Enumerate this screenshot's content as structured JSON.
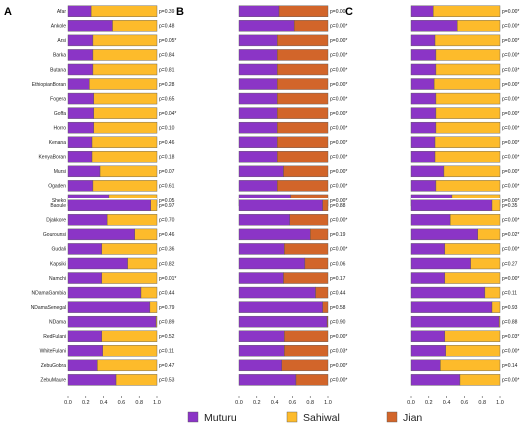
{
  "chart_data": {
    "type": "bar",
    "stacked": true,
    "orientation": "horizontal",
    "xlim": [
      0,
      1
    ],
    "x_ticks": [
      "0.0",
      "0.2",
      "0.4",
      "0.6",
      "0.8",
      "1.0"
    ],
    "legend": {
      "placement": "bottom",
      "items": [
        {
          "name": "Muturu",
          "color": "#8b35c6"
        },
        {
          "name": "Sahiwal",
          "color": "#fdbb2b"
        },
        {
          "name": "Jian",
          "color": "#d2652a"
        }
      ]
    },
    "groups": [
      {
        "rows": [
          "Afar",
          "Ankole",
          "Arsi",
          "Barka",
          "Butana",
          "EthiopianBoran",
          "Fogera",
          "Goffa",
          "Horro",
          "Kenana",
          "KenyaBoran",
          "Mursi",
          "Ogaden",
          "Sheko"
        ]
      },
      {
        "rows": [
          "Baoule",
          "Djakkore",
          "Gourounsi",
          "Gudali",
          "Kapsiki",
          "Namchi",
          "NDamaGambia",
          "NDamaSenegal",
          "NDama",
          "RedFulani",
          "WhiteFulani",
          "ZebuGobra",
          "ZebuMaure"
        ]
      }
    ],
    "panels": [
      {
        "label": "A",
        "groups": [
          [
            {
              "values": [
                0.26,
                0.74,
                0.0
              ],
              "p": "p=0.39"
            },
            {
              "values": [
                0.5,
                0.5,
                0.0
              ],
              "p": "p=0.48"
            },
            {
              "values": [
                0.28,
                0.72,
                0.0
              ],
              "p": "p=0.05*"
            },
            {
              "values": [
                0.28,
                0.72,
                0.0
              ],
              "p": "p=0.84"
            },
            {
              "values": [
                0.28,
                0.72,
                0.0
              ],
              "p": "p=0.81"
            },
            {
              "values": [
                0.24,
                0.76,
                0.0
              ],
              "p": "p=0.28"
            },
            {
              "values": [
                0.29,
                0.71,
                0.0
              ],
              "p": "p=0.65"
            },
            {
              "values": [
                0.29,
                0.71,
                0.0
              ],
              "p": "p=0.04*"
            },
            {
              "values": [
                0.29,
                0.71,
                0.0
              ],
              "p": "p=0.10"
            },
            {
              "values": [
                0.27,
                0.73,
                0.0
              ],
              "p": "p=0.46"
            },
            {
              "values": [
                0.27,
                0.73,
                0.0
              ],
              "p": "p=0.18"
            },
            {
              "values": [
                0.36,
                0.64,
                0.0
              ],
              "p": "p=0.07"
            },
            {
              "values": [
                0.28,
                0.72,
                0.0
              ],
              "p": "p=0.61"
            },
            {
              "values": [
                0.46,
                0.54,
                0.0
              ],
              "p": "p=0.05"
            }
          ],
          [
            {
              "values": [
                0.93,
                0.07,
                0.0
              ],
              "p": "p=0.97"
            },
            {
              "values": [
                0.44,
                0.56,
                0.0
              ],
              "p": "p=0.70"
            },
            {
              "values": [
                0.75,
                0.25,
                0.0
              ],
              "p": "p=0.46"
            },
            {
              "values": [
                0.38,
                0.62,
                0.0
              ],
              "p": "p=0.36"
            },
            {
              "values": [
                0.67,
                0.33,
                0.0
              ],
              "p": "p=0.82"
            },
            {
              "values": [
                0.38,
                0.62,
                0.0
              ],
              "p": "p=0.01*"
            },
            {
              "values": [
                0.82,
                0.18,
                0.0
              ],
              "p": "p=0.44"
            },
            {
              "values": [
                0.92,
                0.08,
                0.0
              ],
              "p": "p=0.79"
            },
            {
              "values": [
                0.99,
                0.01,
                0.0
              ],
              "p": "p=0.89"
            },
            {
              "values": [
                0.38,
                0.62,
                0.0
              ],
              "p": "p=0.52"
            },
            {
              "values": [
                0.39,
                0.61,
                0.0
              ],
              "p": "p=0.11"
            },
            {
              "values": [
                0.33,
                0.67,
                0.0
              ],
              "p": "p=0.47"
            },
            {
              "values": [
                0.54,
                0.46,
                0.0
              ],
              "p": "p=0.53"
            }
          ]
        ]
      },
      {
        "label": "B",
        "groups": [
          [
            {
              "values": [
                0.45,
                0.0,
                0.55
              ],
              "p": "p=0.00*"
            },
            {
              "values": [
                0.62,
                0.0,
                0.38
              ],
              "p": "p=0.00*"
            },
            {
              "values": [
                0.43,
                0.0,
                0.57
              ],
              "p": "p=0.00*"
            },
            {
              "values": [
                0.43,
                0.0,
                0.57
              ],
              "p": "p=0.00*"
            },
            {
              "values": [
                0.43,
                0.0,
                0.57
              ],
              "p": "p=0.00*"
            },
            {
              "values": [
                0.43,
                0.0,
                0.57
              ],
              "p": "p=0.00*"
            },
            {
              "values": [
                0.43,
                0.0,
                0.57
              ],
              "p": "p=0.00*"
            },
            {
              "values": [
                0.43,
                0.0,
                0.57
              ],
              "p": "p=0.00*"
            },
            {
              "values": [
                0.43,
                0.0,
                0.57
              ],
              "p": "p=0.00*"
            },
            {
              "values": [
                0.43,
                0.0,
                0.57
              ],
              "p": "p=0.00*"
            },
            {
              "values": [
                0.43,
                0.0,
                0.57
              ],
              "p": "p=0.00*"
            },
            {
              "values": [
                0.5,
                0.0,
                0.5
              ],
              "p": "p=0.00*"
            },
            {
              "values": [
                0.43,
                0.0,
                0.57
              ],
              "p": "p=0.00*"
            },
            {
              "values": [
                0.58,
                0.0,
                0.42
              ],
              "p": "p=0.00*"
            }
          ],
          [
            {
              "values": [
                0.94,
                0.0,
                0.06
              ],
              "p": "p=0.88"
            },
            {
              "values": [
                0.57,
                0.0,
                0.43
              ],
              "p": "p=0.00*"
            },
            {
              "values": [
                0.8,
                0.0,
                0.2
              ],
              "p": "p=0.19"
            },
            {
              "values": [
                0.51,
                0.0,
                0.49
              ],
              "p": "p=0.00*"
            },
            {
              "values": [
                0.74,
                0.0,
                0.26
              ],
              "p": "p=0.06"
            },
            {
              "values": [
                0.5,
                0.0,
                0.5
              ],
              "p": "p=0.17"
            },
            {
              "values": [
                0.86,
                0.0,
                0.14
              ],
              "p": "p=0.44"
            },
            {
              "values": [
                0.94,
                0.0,
                0.06
              ],
              "p": "p=0.58"
            },
            {
              "values": [
                0.99,
                0.0,
                0.01
              ],
              "p": "p=0.90"
            },
            {
              "values": [
                0.51,
                0.0,
                0.49
              ],
              "p": "p=0.00*"
            },
            {
              "values": [
                0.51,
                0.0,
                0.49
              ],
              "p": "p=0.03*"
            },
            {
              "values": [
                0.48,
                0.0,
                0.52
              ],
              "p": "p=0.00*"
            },
            {
              "values": [
                0.64,
                0.0,
                0.36
              ],
              "p": "p=0.00*"
            }
          ]
        ]
      },
      {
        "label": "C",
        "groups": [
          [
            {
              "values": [
                0.25,
                0.75,
                0.0
              ],
              "p": "p=0.00*"
            },
            {
              "values": [
                0.52,
                0.48,
                0.0
              ],
              "p": "p=0.00*"
            },
            {
              "values": [
                0.27,
                0.73,
                0.0
              ],
              "p": "p=0.00*"
            },
            {
              "values": [
                0.28,
                0.72,
                0.0
              ],
              "p": "p=0.00*"
            },
            {
              "values": [
                0.28,
                0.72,
                0.0
              ],
              "p": "p=0.03*"
            },
            {
              "values": [
                0.26,
                0.74,
                0.0
              ],
              "p": "p=0.00*"
            },
            {
              "values": [
                0.28,
                0.72,
                0.0
              ],
              "p": "p=0.00*"
            },
            {
              "values": [
                0.28,
                0.72,
                0.0
              ],
              "p": "p=0.00*"
            },
            {
              "values": [
                0.28,
                0.72,
                0.0
              ],
              "p": "p=0.00*"
            },
            {
              "values": [
                0.27,
                0.73,
                0.0
              ],
              "p": "p=0.00*"
            },
            {
              "values": [
                0.27,
                0.73,
                0.0
              ],
              "p": "p=0.00*"
            },
            {
              "values": [
                0.37,
                0.63,
                0.0
              ],
              "p": "p=0.00*"
            },
            {
              "values": [
                0.28,
                0.72,
                0.0
              ],
              "p": "p=0.00*"
            },
            {
              "values": [
                0.46,
                0.54,
                0.0
              ],
              "p": "p=0.00*"
            }
          ],
          [
            {
              "values": [
                0.91,
                0.09,
                0.0
              ],
              "p": "p=0.35"
            },
            {
              "values": [
                0.44,
                0.56,
                0.0
              ],
              "p": "p=0.00*"
            },
            {
              "values": [
                0.75,
                0.25,
                0.0
              ],
              "p": "p=0.02*"
            },
            {
              "values": [
                0.38,
                0.62,
                0.0
              ],
              "p": "p=0.00*"
            },
            {
              "values": [
                0.67,
                0.33,
                0.0
              ],
              "p": "p=0.27"
            },
            {
              "values": [
                0.38,
                0.62,
                0.0
              ],
              "p": "p=0.00*"
            },
            {
              "values": [
                0.83,
                0.17,
                0.0
              ],
              "p": "p=0.11"
            },
            {
              "values": [
                0.91,
                0.09,
                0.0
              ],
              "p": "p=0.93"
            },
            {
              "values": [
                0.99,
                0.01,
                0.0
              ],
              "p": "p=0.88"
            },
            {
              "values": [
                0.38,
                0.62,
                0.0
              ],
              "p": "p=0.03*"
            },
            {
              "values": [
                0.39,
                0.61,
                0.0
              ],
              "p": "p=0.00*"
            },
            {
              "values": [
                0.33,
                0.67,
                0.0
              ],
              "p": "p=0.14"
            },
            {
              "values": [
                0.55,
                0.45,
                0.0
              ],
              "p": "p=0.00*"
            }
          ]
        ]
      }
    ]
  }
}
